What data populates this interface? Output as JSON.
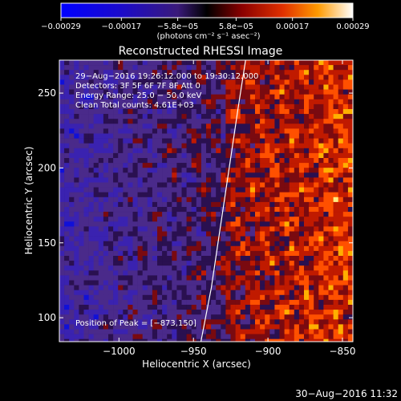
{
  "colorbar": {
    "tick_labels": [
      "−0.00029",
      "−0.00017",
      "−5.8e−05",
      "5.8e−05",
      "0.00017",
      "0.00029"
    ],
    "units": "(photons cm⁻² s⁻¹ asec⁻²)",
    "range": [
      -0.00029,
      0.00029
    ]
  },
  "plot": {
    "title": "Reconstructed RHESSI Image",
    "info_lines": [
      "29−Aug−2016 19:26:12.000 to 19:30:12.000",
      "Detectors: 3F 5F 6F 7F 8F  Att 0",
      "Energy Range: 25.0 − 50.0 keV",
      "Clean     Total counts: 4.61E+03"
    ],
    "peak_label": "Position of Peak = [−873,150]",
    "xlabel": "Heliocentric X (arcsec)",
    "ylabel": "Heliocentric Y (arcsec)",
    "xticks": [
      "−1000",
      "−950",
      "−900",
      "−850"
    ],
    "yticks": [
      "100",
      "150",
      "200",
      "250"
    ],
    "xlim": [
      -1040,
      -843
    ],
    "ylim": [
      84,
      272
    ]
  },
  "footer": {
    "timestamp": "30−Aug−2016 11:32"
  },
  "limb": {
    "x": [
      -945,
      -938,
      -932,
      -926,
      -920,
      -915
    ],
    "y": [
      84,
      120,
      160,
      200,
      240,
      272
    ]
  }
}
